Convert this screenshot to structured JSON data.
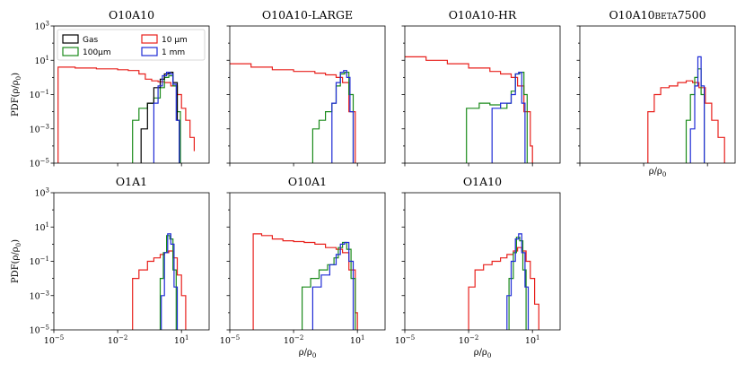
{
  "figure": {
    "legend": {
      "entries": [
        {
          "label": "Gas",
          "color": "#000000"
        },
        {
          "label": "10 μm",
          "color": "#e8201c"
        },
        {
          "label": "100μm",
          "color": "#1a8a1a"
        },
        {
          "label": "1 mm",
          "color": "#1f2bd6"
        }
      ],
      "location": "upper-left of first panel"
    }
  },
  "chart_data": [
    {
      "type": "line",
      "title": "O10A10",
      "xlabel": "",
      "ylabel": "PDF(ρ/ρ0)",
      "xscale": "log",
      "yscale": "log",
      "xlim_exp": [
        -5,
        2.3
      ],
      "ylim_exp": [
        -5,
        3
      ],
      "xtick_labels": [],
      "ytick_labels": [
        "10^-5",
        "10^-3",
        "10^-1",
        "10^1",
        "10^3"
      ],
      "series": [
        {
          "name": "10 μm",
          "color": "#e8201c",
          "x_exp": [
            -4.8,
            -4.8,
            -4.0,
            -3.0,
            -2.0,
            -1.5,
            -1.0,
            -0.7,
            -0.4,
            -0.1,
            0.2,
            0.5,
            0.8,
            1.0,
            1.2,
            1.4,
            1.6
          ],
          "y_exp": [
            -5.0,
            0.6,
            0.55,
            0.5,
            0.45,
            0.4,
            0.2,
            -0.1,
            -0.2,
            -0.25,
            -0.3,
            -0.5,
            -1.0,
            -1.8,
            -2.5,
            -3.5,
            -4.3
          ]
        },
        {
          "name": "100μm",
          "color": "#1a8a1a",
          "x_exp": [
            -1.3,
            -1.3,
            -1.0,
            -0.6,
            -0.3,
            0.0,
            0.2,
            0.4,
            0.6,
            0.8,
            0.95
          ],
          "y_exp": [
            -5.0,
            -2.5,
            -1.8,
            -1.5,
            -1.2,
            -0.6,
            0.0,
            0.1,
            -0.5,
            -2.0,
            -5.0
          ]
        },
        {
          "name": "Gas",
          "color": "#000000",
          "x_exp": [
            -0.9,
            -0.9,
            -0.6,
            -0.3,
            0.0,
            0.2,
            0.4,
            0.6,
            0.8,
            0.9
          ],
          "y_exp": [
            -5.0,
            -3.0,
            -1.5,
            -0.6,
            -0.1,
            0.2,
            0.3,
            -0.3,
            -2.5,
            -5.0
          ]
        },
        {
          "name": "1 mm",
          "color": "#1f2bd6",
          "x_exp": [
            -0.3,
            -0.3,
            -0.1,
            0.1,
            0.3,
            0.45,
            0.6,
            0.75,
            0.9
          ],
          "y_exp": [
            -5.0,
            -1.5,
            -0.5,
            0.1,
            0.3,
            0.2,
            -0.4,
            -2.5,
            -5.0
          ]
        }
      ]
    },
    {
      "type": "line",
      "title": "O10A10-LARGE",
      "xlabel": "",
      "ylabel": "",
      "xscale": "log",
      "yscale": "log",
      "xlim_exp": [
        -5,
        2.3
      ],
      "ylim_exp": [
        -5,
        3
      ],
      "xtick_labels": [],
      "ytick_labels": [],
      "series": [
        {
          "name": "10 μm",
          "color": "#e8201c",
          "x_exp": [
            -5.0,
            -4.0,
            -3.0,
            -2.0,
            -1.0,
            -0.5,
            0.0,
            0.3,
            0.6,
            0.9
          ],
          "y_exp": [
            0.8,
            0.6,
            0.45,
            0.35,
            0.25,
            0.15,
            0.0,
            -0.3,
            -2.0,
            -5.0
          ]
        },
        {
          "name": "100μm",
          "color": "#1a8a1a",
          "x_exp": [
            -1.1,
            -1.1,
            -0.8,
            -0.5,
            -0.2,
            0.0,
            0.2,
            0.4,
            0.6,
            0.8
          ],
          "y_exp": [
            -5.0,
            -3.0,
            -2.5,
            -2.0,
            -1.5,
            -0.5,
            0.2,
            0.3,
            -1.0,
            -5.0
          ]
        },
        {
          "name": "1 mm",
          "color": "#1f2bd6",
          "x_exp": [
            -0.2,
            -0.2,
            0.0,
            0.2,
            0.35,
            0.5,
            0.65,
            0.8
          ],
          "y_exp": [
            -5.0,
            -1.5,
            -0.3,
            0.3,
            0.4,
            0.0,
            -2.0,
            -5.0
          ]
        }
      ]
    },
    {
      "type": "line",
      "title": "O10A10-HR",
      "xlabel": "",
      "ylabel": "",
      "xscale": "log",
      "yscale": "log",
      "xlim_exp": [
        -5,
        2.3
      ],
      "ylim_exp": [
        -5,
        3
      ],
      "xtick_labels": [],
      "ytick_labels": [],
      "series": [
        {
          "name": "10 μm",
          "color": "#e8201c",
          "x_exp": [
            -5.0,
            -4.0,
            -3.0,
            -2.0,
            -1.0,
            -0.5,
            0.0,
            0.3,
            0.6,
            0.9,
            1.0
          ],
          "y_exp": [
            1.2,
            1.0,
            0.8,
            0.55,
            0.35,
            0.2,
            0.0,
            -0.5,
            -2.0,
            -4.0,
            -5.0
          ]
        },
        {
          "name": "100μm",
          "color": "#1a8a1a",
          "x_exp": [
            -2.1,
            -2.1,
            -1.5,
            -1.0,
            -0.5,
            -0.2,
            0.0,
            0.2,
            0.4,
            0.6,
            0.75
          ],
          "y_exp": [
            -5.0,
            -1.8,
            -1.5,
            -1.6,
            -1.8,
            -1.5,
            -0.8,
            0.2,
            0.3,
            -1.0,
            -5.0
          ]
        },
        {
          "name": "1 mm",
          "color": "#1f2bd6",
          "x_exp": [
            -0.9,
            -0.9,
            -0.5,
            -0.2,
            0.0,
            0.2,
            0.35,
            0.5,
            0.65
          ],
          "y_exp": [
            -5.0,
            -1.8,
            -1.5,
            -1.5,
            -1.0,
            0.2,
            0.3,
            -1.5,
            -5.0
          ]
        }
      ]
    },
    {
      "type": "line",
      "title": "O10A10beta7500",
      "xlabel": "ρ/ρ0",
      "ylabel": "",
      "xscale": "log",
      "yscale": "log",
      "xlim_exp": [
        -5,
        2.3
      ],
      "ylim_exp": [
        -5,
        3
      ],
      "xtick_labels": [],
      "ytick_labels": [],
      "series": [
        {
          "name": "10 μm",
          "color": "#e8201c",
          "x_exp": [
            -1.8,
            -1.8,
            -1.5,
            -1.2,
            -0.8,
            -0.4,
            0.0,
            0.3,
            0.6,
            0.9,
            1.2,
            1.5,
            1.8
          ],
          "y_exp": [
            -5.0,
            -2.0,
            -1.0,
            -0.6,
            -0.5,
            -0.3,
            -0.2,
            -0.3,
            -0.6,
            -1.5,
            -2.5,
            -3.5,
            -5.0
          ]
        },
        {
          "name": "100μm",
          "color": "#1a8a1a",
          "x_exp": [
            0.0,
            0.0,
            0.2,
            0.4,
            0.55,
            0.7,
            0.85
          ],
          "y_exp": [
            -5.0,
            -2.5,
            -1.0,
            0.0,
            0.5,
            -1.0,
            -5.0
          ]
        },
        {
          "name": "1 mm",
          "color": "#1f2bd6",
          "x_exp": [
            0.2,
            0.2,
            0.4,
            0.55,
            0.7,
            0.85
          ],
          "y_exp": [
            -5.0,
            -3.0,
            -0.5,
            1.2,
            -0.5,
            -5.0
          ]
        }
      ]
    },
    {
      "type": "line",
      "title": "O1A1",
      "xlabel": "",
      "ylabel": "PDF(ρ/ρ0)",
      "xscale": "log",
      "yscale": "log",
      "xlim_exp": [
        -5,
        2.3
      ],
      "ylim_exp": [
        -5,
        3
      ],
      "xtick_labels": [
        "10^-5",
        "10^-2",
        "10^1"
      ],
      "ytick_labels": [
        "10^-5",
        "10^-3",
        "10^-1",
        "10^1",
        "10^3"
      ],
      "series": [
        {
          "name": "10 μm",
          "color": "#e8201c",
          "x_exp": [
            -1.3,
            -1.3,
            -1.0,
            -0.6,
            -0.3,
            0.0,
            0.2,
            0.4,
            0.6,
            0.8,
            1.0,
            1.2
          ],
          "y_exp": [
            -5.0,
            -2.0,
            -1.5,
            -1.0,
            -0.8,
            -0.6,
            -0.5,
            -0.4,
            -0.8,
            -1.8,
            -3.0,
            -5.0
          ]
        },
        {
          "name": "100μm",
          "color": "#1a8a1a",
          "x_exp": [
            0.0,
            0.0,
            0.15,
            0.3,
            0.45,
            0.6,
            0.75
          ],
          "y_exp": [
            -5.0,
            -2.0,
            -0.5,
            0.5,
            0.3,
            -1.5,
            -5.0
          ]
        },
        {
          "name": "1 mm",
          "color": "#1f2bd6",
          "x_exp": [
            0.05,
            0.05,
            0.2,
            0.35,
            0.5,
            0.65,
            0.8
          ],
          "y_exp": [
            -5.0,
            -3.0,
            -0.5,
            0.6,
            0.0,
            -2.5,
            -5.0
          ]
        }
      ]
    },
    {
      "type": "line",
      "title": "O10A1",
      "xlabel": "ρ/ρ0",
      "ylabel": "",
      "xscale": "log",
      "yscale": "log",
      "xlim_exp": [
        -5,
        2.3
      ],
      "ylim_exp": [
        -5,
        3
      ],
      "xtick_labels": [
        "10^-5",
        "10^-2",
        "10^1"
      ],
      "ytick_labels": [],
      "series": [
        {
          "name": "10 μm",
          "color": "#e8201c",
          "x_exp": [
            -3.9,
            -3.9,
            -3.5,
            -3.0,
            -2.5,
            -2.0,
            -1.5,
            -1.0,
            -0.5,
            0.0,
            0.3,
            0.6,
            0.9,
            1.0
          ],
          "y_exp": [
            -5.0,
            0.6,
            0.5,
            0.3,
            0.2,
            0.15,
            0.1,
            0.0,
            -0.2,
            -0.3,
            -0.5,
            -1.5,
            -4.0,
            -5.0
          ]
        },
        {
          "name": "100μm",
          "color": "#1a8a1a",
          "x_exp": [
            -1.6,
            -1.6,
            -1.2,
            -0.8,
            -0.4,
            -0.1,
            0.1,
            0.3,
            0.5,
            0.7,
            0.9
          ],
          "y_exp": [
            -5.0,
            -2.5,
            -2.0,
            -1.5,
            -1.2,
            -0.8,
            -0.2,
            0.1,
            -0.3,
            -2.0,
            -5.0
          ]
        },
        {
          "name": "1 mm",
          "color": "#1f2bd6",
          "x_exp": [
            -1.1,
            -1.1,
            -0.7,
            -0.3,
            0.0,
            0.2,
            0.4,
            0.6,
            0.8
          ],
          "y_exp": [
            -5.0,
            -2.5,
            -1.8,
            -1.2,
            -0.6,
            0.0,
            0.1,
            -1.0,
            -5.0
          ]
        }
      ]
    },
    {
      "type": "line",
      "title": "O1A10",
      "xlabel": "ρ/ρ0",
      "ylabel": "",
      "xscale": "log",
      "yscale": "log",
      "xlim_exp": [
        -5,
        2.3
      ],
      "ylim_exp": [
        -5,
        3
      ],
      "xtick_labels": [
        "10^-5",
        "10^-2",
        "10^1"
      ],
      "ytick_labels": [],
      "series": [
        {
          "name": "10 μm",
          "color": "#e8201c",
          "x_exp": [
            -2.0,
            -2.0,
            -1.7,
            -1.3,
            -0.9,
            -0.5,
            -0.2,
            0.1,
            0.3,
            0.5,
            0.7,
            0.9,
            1.1,
            1.3
          ],
          "y_exp": [
            -5.0,
            -2.5,
            -1.5,
            -1.2,
            -1.0,
            -0.8,
            -0.6,
            -0.4,
            -0.2,
            -0.4,
            -1.0,
            -2.0,
            -3.5,
            -5.0
          ]
        },
        {
          "name": "100μm",
          "color": "#1a8a1a",
          "x_exp": [
            -0.1,
            -0.1,
            0.1,
            0.25,
            0.4,
            0.55,
            0.7
          ],
          "y_exp": [
            -5.0,
            -2.0,
            -0.5,
            0.4,
            0.2,
            -1.5,
            -5.0
          ]
        },
        {
          "name": "1 mm",
          "color": "#1f2bd6",
          "x_exp": [
            -0.2,
            -0.2,
            0.0,
            0.2,
            0.35,
            0.5,
            0.65,
            0.8
          ],
          "y_exp": [
            -5.0,
            -3.0,
            -1.0,
            0.3,
            0.6,
            -0.5,
            -2.5,
            -5.0
          ]
        }
      ]
    }
  ]
}
